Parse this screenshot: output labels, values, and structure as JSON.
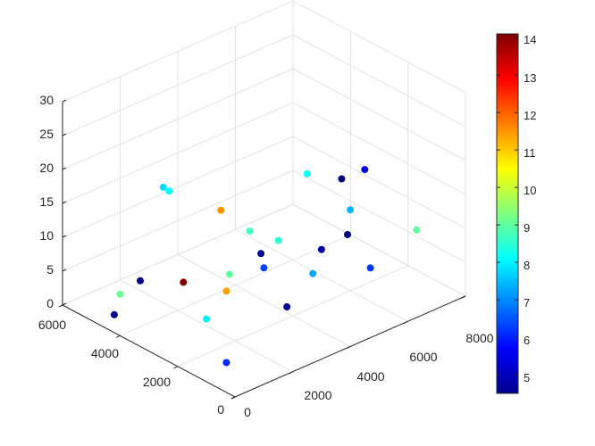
{
  "chart_data": {
    "type": "scatter3d",
    "title": "",
    "xlabel": "",
    "ylabel": "",
    "zlabel": "",
    "grid": true,
    "xlim": [
      0,
      8000
    ],
    "ylim": [
      0,
      6000
    ],
    "zlim": [
      0,
      30
    ],
    "x_ticks": [
      "0",
      "2000",
      "4000",
      "6000",
      "8000"
    ],
    "y_ticks": [
      "0",
      "2000",
      "4000",
      "6000"
    ],
    "z_ticks": [
      "0",
      "5",
      "10",
      "15",
      "20",
      "25",
      "30"
    ],
    "colormap": "jet",
    "color_range": [
      4.5,
      14.1
    ],
    "colorbar_ticks": [
      "5",
      "6",
      "7",
      "8",
      "9",
      "10",
      "11",
      "12",
      "13",
      "14"
    ],
    "points": [
      {
        "x": 400,
        "y": 4600,
        "z": 1.0,
        "c": 4.6
      },
      {
        "x": 1500,
        "y": 4800,
        "z": 3.5,
        "c": 4.5
      },
      {
        "x": 3000,
        "y": 4800,
        "z": 0.5,
        "c": 14.1
      },
      {
        "x": 700,
        "y": 1000,
        "z": 1.5,
        "c": 6.1
      },
      {
        "x": 1200,
        "y": 1500,
        "z": 10.0,
        "c": 11.4
      },
      {
        "x": 2000,
        "y": 3000,
        "z": 1.0,
        "c": 8.0
      },
      {
        "x": 3000,
        "y": 1200,
        "z": 5.0,
        "c": 4.7
      },
      {
        "x": 5500,
        "y": 800,
        "z": 7.0,
        "c": 6.2
      },
      {
        "x": 5000,
        "y": 4500,
        "z": 5.0,
        "c": 8.7
      },
      {
        "x": 6500,
        "y": 2600,
        "z": 6.0,
        "c": 4.5
      },
      {
        "x": 4500,
        "y": 1500,
        "z": 10.0,
        "c": 4.8
      },
      {
        "x": 2500,
        "y": 1500,
        "z": 11.0,
        "c": 6.3
      },
      {
        "x": 1500,
        "y": 600,
        "z": 17.0,
        "c": 4.7
      },
      {
        "x": 2500,
        "y": 5000,
        "z": 15.0,
        "c": 7.8
      },
      {
        "x": 5000,
        "y": 2500,
        "z": 18.0,
        "c": 8.2
      },
      {
        "x": 4000,
        "y": 2500,
        "z": 10.0,
        "c": 8.5
      },
      {
        "x": 3500,
        "y": 4000,
        "z": 12.0,
        "c": 11.5
      },
      {
        "x": 3200,
        "y": 5500,
        "z": 12.0,
        "c": 8.1
      },
      {
        "x": 4500,
        "y": 800,
        "z": 22.0,
        "c": 4.5
      },
      {
        "x": 6000,
        "y": 1500,
        "z": 19.0,
        "c": 5.4
      },
      {
        "x": 5500,
        "y": 1500,
        "z": 14.0,
        "c": 7.4
      },
      {
        "x": 7500,
        "y": 1200,
        "z": 8.0,
        "c": 9.0
      },
      {
        "x": 4200,
        "y": 1500,
        "z": 7.0,
        "c": 7.3
      },
      {
        "x": 3800,
        "y": 4000,
        "z": 2.0,
        "c": 9.0
      },
      {
        "x": 1000,
        "y": 5000,
        "z": 2.0,
        "c": 9.1
      }
    ]
  }
}
